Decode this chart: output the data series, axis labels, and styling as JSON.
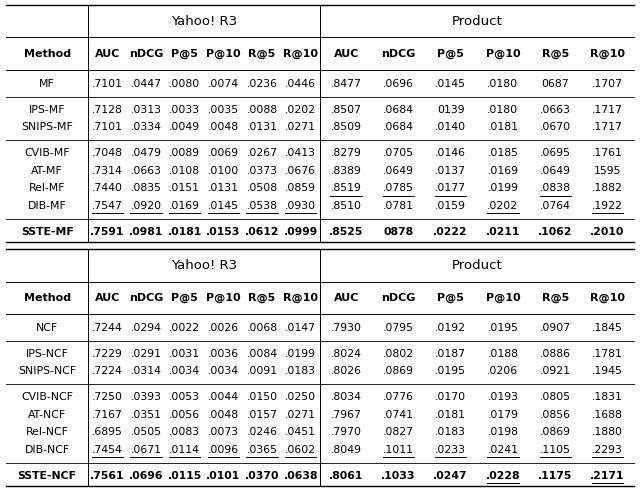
{
  "table1": {
    "title_yahoo": "Yahoo! R3",
    "title_product": "Product",
    "rows": [
      {
        "method": "MF",
        "data": [
          ".7101",
          ".0447",
          ".0080",
          ".0074",
          ".0236",
          ".0446",
          ".8477",
          ".0696",
          ".0145",
          ".0180",
          "0687",
          ".1707"
        ],
        "bold": false,
        "underline": []
      },
      {
        "method": "IPS-MF",
        "data": [
          ".7128",
          ".0313",
          ".0033",
          ".0035",
          ".0088",
          ".0202",
          ".8507",
          ".0684",
          "0139",
          ".0180",
          ".0663",
          ".1717"
        ],
        "bold": false,
        "underline": []
      },
      {
        "method": "SNIPS-MF",
        "data": [
          ".7101",
          ".0334",
          ".0049",
          ".0048",
          ".0131",
          ".0271",
          ".8509",
          ".0684",
          ".0140",
          ".0181",
          ".0670",
          ".1717"
        ],
        "bold": false,
        "underline": []
      },
      {
        "method": "CVIB-MF",
        "data": [
          ".7048",
          ".0479",
          ".0089",
          ".0069",
          ".0267",
          ".0413",
          ".8279",
          ".0705",
          ".0146",
          ".0185",
          ".0695",
          ".1761"
        ],
        "bold": false,
        "underline": []
      },
      {
        "method": "AT-MF",
        "data": [
          ".7314",
          ".0663",
          ".0108",
          ".0100",
          ".0373",
          ".0676",
          ".8389",
          ".0649",
          ".0137",
          ".0169",
          ".0649",
          "1595"
        ],
        "bold": false,
        "underline": []
      },
      {
        "method": "Rel-MF",
        "data": [
          ".7440",
          ".0835",
          ".0151",
          ".0131",
          ".0508",
          ".0859",
          ".8519",
          ".0785",
          ".0177",
          ".0199",
          ".0838",
          ".1882"
        ],
        "bold": false,
        "underline": [
          6,
          7,
          8,
          10
        ]
      },
      {
        "method": "DIB-MF",
        "data": [
          ".7547",
          ".0920",
          ".0169",
          ".0145",
          ".0538",
          ".0930",
          ".8510",
          ".0781",
          ".0159",
          ".0202",
          ".0764",
          ".1922"
        ],
        "bold": false,
        "underline": [
          0,
          1,
          2,
          3,
          4,
          5,
          9,
          11
        ]
      },
      {
        "method": "SSTE-MF",
        "data": [
          ".7591",
          ".0981",
          ".0181",
          ".0153",
          ".0612",
          ".0999",
          ".8525",
          "0878",
          ".0222",
          ".0211",
          ".1062",
          ".2010"
        ],
        "bold": true,
        "underline": []
      }
    ],
    "groups": [
      [
        0
      ],
      [
        1,
        2
      ],
      [
        3,
        4,
        5,
        6
      ],
      [
        7
      ]
    ]
  },
  "table2": {
    "title_yahoo": "Yahoo! R3",
    "title_product": "Product",
    "rows": [
      {
        "method": "NCF",
        "data": [
          ".7244",
          ".0294",
          ".0022",
          ".0026",
          ".0068",
          ".0147",
          ".7930",
          ".0795",
          ".0192",
          ".0195",
          ".0907",
          ".1845"
        ],
        "bold": false,
        "underline": []
      },
      {
        "method": "IPS-NCF",
        "data": [
          ".7229",
          ".0291",
          ".0031",
          ".0036",
          ".0084",
          ".0199",
          ".8024",
          ".0802",
          ".0187",
          ".0188",
          ".0886",
          ".1781"
        ],
        "bold": false,
        "underline": []
      },
      {
        "method": "SNIPS-NCF",
        "data": [
          ".7224",
          ".0314",
          ".0034",
          ".0034",
          ".0091",
          ".0183",
          ".8026",
          ".0869",
          ".0195",
          ".0206",
          ".0921",
          ".1945"
        ],
        "bold": false,
        "underline": []
      },
      {
        "method": "CVIB-NCF",
        "data": [
          ".7250",
          ".0393",
          ".0053",
          ".0044",
          ".0150",
          ".0250",
          ".8034",
          ".0776",
          ".0170",
          ".0193",
          ".0805",
          ".1831"
        ],
        "bold": false,
        "underline": []
      },
      {
        "method": "AT-NCF",
        "data": [
          ".7167",
          ".0351",
          ".0056",
          ".0048",
          ".0157",
          ".0271",
          ".7967",
          ".0741",
          ".0181",
          ".0179",
          ".0856",
          ".1688"
        ],
        "bold": false,
        "underline": []
      },
      {
        "method": "Rel-NCF",
        "data": [
          ".6895",
          ".0505",
          ".0083",
          ".0073",
          ".0246",
          ".0451",
          ".7970",
          ".0827",
          ".0183",
          ".0198",
          ".0869",
          ".1880"
        ],
        "bold": false,
        "underline": []
      },
      {
        "method": "DIB-NCF",
        "data": [
          ".7454",
          ".0671",
          ".0114",
          ".0096",
          ".0365",
          ".0602",
          ".8049",
          ".1011",
          ".0233",
          ".0241",
          ".1105",
          ".2293"
        ],
        "bold": false,
        "underline": [
          0,
          1,
          2,
          3,
          4,
          5,
          7,
          8,
          9,
          10,
          11
        ]
      },
      {
        "method": "SSTE-NCF",
        "data": [
          ".7561",
          ".0696",
          ".0115",
          ".0101",
          ".0370",
          ".0638",
          ".8061",
          ".1033",
          ".0247",
          ".0228",
          ".1175",
          ".2171"
        ],
        "bold": true,
        "underline": [
          9,
          11
        ]
      }
    ],
    "groups": [
      [
        0
      ],
      [
        1,
        2
      ],
      [
        3,
        4,
        5,
        6
      ],
      [
        7
      ]
    ]
  }
}
